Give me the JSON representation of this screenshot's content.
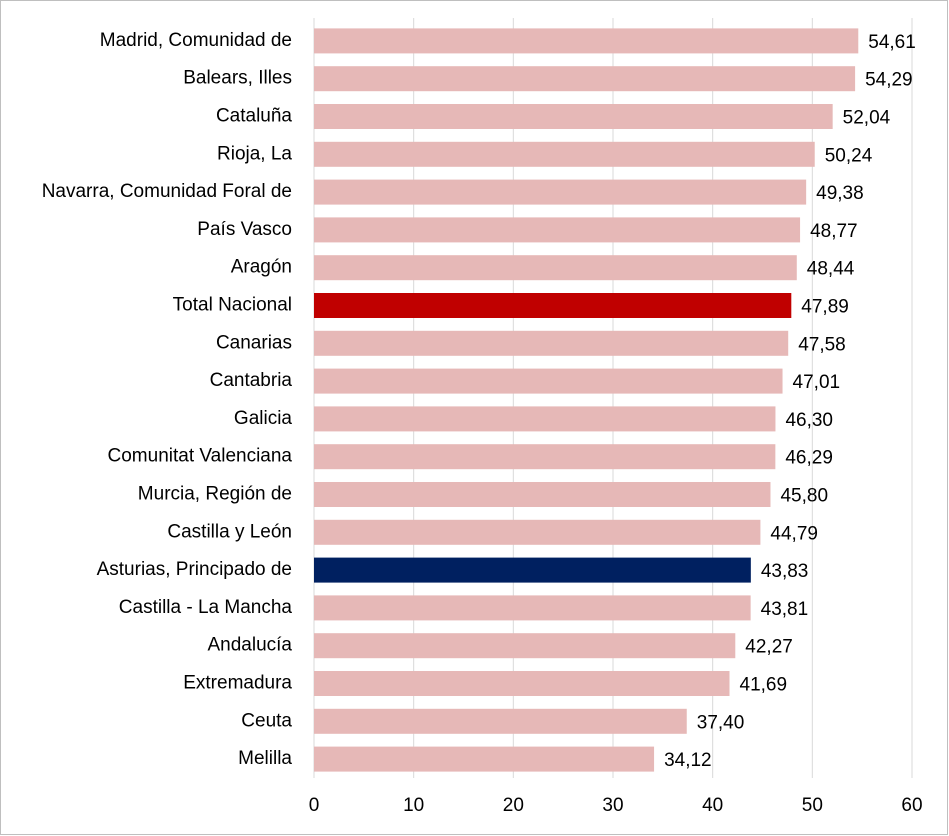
{
  "chart_data": {
    "type": "hbar",
    "categories": [
      "Madrid, Comunidad de",
      "Balears, Illes",
      "Cataluña",
      "Rioja, La",
      "Navarra, Comunidad Foral de",
      "País Vasco",
      "Aragón",
      "Total Nacional",
      "Canarias",
      "Cantabria",
      "Galicia",
      "Comunitat Valenciana",
      "Murcia, Región de",
      "Castilla y León",
      "Asturias, Principado de",
      "Castilla - La Mancha",
      "Andalucía",
      "Extremadura",
      "Ceuta",
      "Melilla"
    ],
    "values": [
      54.61,
      54.29,
      52.04,
      50.24,
      49.38,
      48.77,
      48.44,
      47.89,
      47.58,
      47.01,
      46.3,
      46.29,
      45.8,
      44.79,
      43.83,
      43.81,
      42.27,
      41.69,
      37.4,
      34.12
    ],
    "value_labels": [
      "54,61",
      "54,29",
      "52,04",
      "50,24",
      "49,38",
      "48,77",
      "48,44",
      "47,89",
      "47,58",
      "47,01",
      "46,30",
      "46,29",
      "45,80",
      "44,79",
      "43,83",
      "43,81",
      "42,27",
      "41,69",
      "37,40",
      "34,12"
    ],
    "colors": [
      "#e6b8b7",
      "#e6b8b7",
      "#e6b8b7",
      "#e6b8b7",
      "#e6b8b7",
      "#e6b8b7",
      "#e6b8b7",
      "#c00000",
      "#e6b8b7",
      "#e6b8b7",
      "#e6b8b7",
      "#e6b8b7",
      "#e6b8b7",
      "#e6b8b7",
      "#002060",
      "#e6b8b7",
      "#e6b8b7",
      "#e6b8b7",
      "#e6b8b7",
      "#e6b8b7"
    ],
    "xlim": [
      0,
      60
    ],
    "xticks": [
      0,
      10,
      20,
      30,
      40,
      50,
      60
    ],
    "grid": true
  }
}
